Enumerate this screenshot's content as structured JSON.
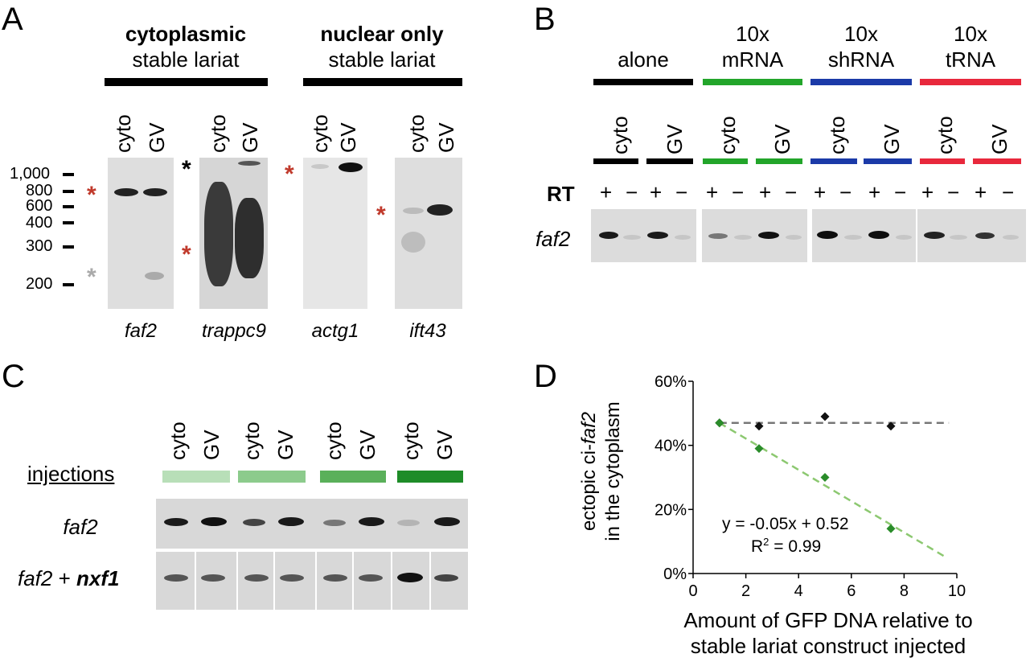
{
  "panelA": {
    "letter": "A",
    "group1": {
      "title": "cytoplasmic",
      "subtitle": "stable lariat"
    },
    "group2": {
      "title": "nuclear only",
      "subtitle": "stable lariat"
    },
    "lane_cyto": "cyto",
    "lane_gv": "GV",
    "markers": [
      "1,000",
      "800",
      "600",
      "400",
      "300",
      "200"
    ],
    "genes": [
      "faf2",
      "trappc9",
      "actg1",
      "ift43"
    ],
    "star": "*"
  },
  "panelB": {
    "letter": "B",
    "conditions": [
      {
        "line1": "",
        "line2": "alone",
        "color": "#000000"
      },
      {
        "line1": "10x",
        "line2": "mRNA",
        "color": "#22a52a"
      },
      {
        "line1": "10x",
        "line2": "shRNA",
        "color": "#1b3aa8"
      },
      {
        "line1": "10x",
        "line2": "tRNA",
        "color": "#e8283c"
      }
    ],
    "lane_cyto": "cyto",
    "lane_gv": "GV",
    "rt_label": "RT",
    "plus": "+",
    "minus": "−",
    "gene": "faf2"
  },
  "panelC": {
    "letter": "C",
    "lane_cyto": "cyto",
    "lane_gv": "GV",
    "injections_label": "injections",
    "injection_colors": [
      "#b8dfb8",
      "#8ccb8c",
      "#5ab05a",
      "#1e8c28"
    ],
    "row1": "faf2",
    "row2_gene1": "faf2",
    "row2_plus": " + ",
    "row2_gene2": "nxf1"
  },
  "panelD": {
    "letter": "D",
    "ylabel_line1_prefix": "ectopic ci-",
    "ylabel_line1_italic": "faf2",
    "ylabel_line2": "in the cytoplasm",
    "xlabel_line1": "Amount of GFP DNA relative to",
    "xlabel_line2": "stable lariat construct injected",
    "equation": "y = -0.05x + 0.52",
    "r2_prefix": "R",
    "r2_sup": "2",
    "r2_value": " = 0.99"
  },
  "chart_data": {
    "type": "scatter",
    "title": "",
    "xlabel": "Amount of GFP DNA relative to stable lariat construct injected",
    "ylabel": "ectopic ci-faf2 in the cytoplasm",
    "xlim": [
      0,
      10
    ],
    "ylim": [
      0,
      0.6
    ],
    "xticks": [
      "0",
      "2",
      "4",
      "6",
      "8",
      "10"
    ],
    "yticks": [
      "0%",
      "20%",
      "40%",
      "60%"
    ],
    "series": [
      {
        "color": "#111111",
        "x": [
          1,
          2.5,
          5,
          7.5
        ],
        "y": [
          0.47,
          0.46,
          0.49,
          0.46
        ],
        "trend": {
          "x": [
            1,
            9.7
          ],
          "y": [
            0.47,
            0.47
          ],
          "color": "#777777"
        }
      },
      {
        "color": "#2a8c2a",
        "x": [
          1,
          2.5,
          5,
          7.5
        ],
        "y": [
          0.47,
          0.39,
          0.3,
          0.14
        ],
        "trend": {
          "x": [
            1,
            9.5
          ],
          "y": [
            0.47,
            0.055
          ],
          "color": "#8cc870"
        }
      }
    ]
  }
}
